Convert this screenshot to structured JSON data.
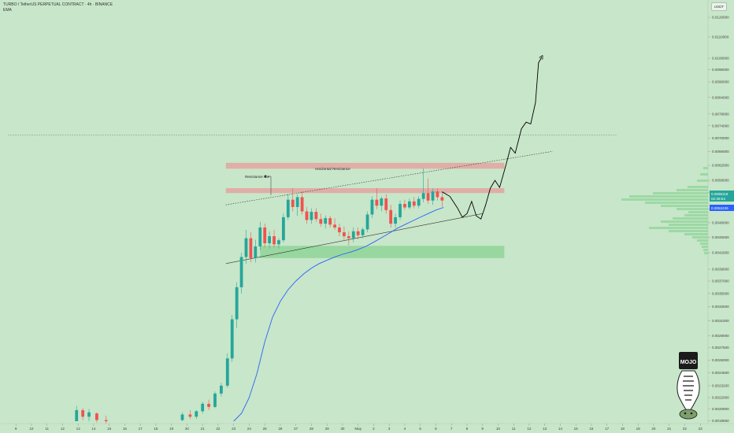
{
  "header": {
    "title": "TURBO / TetherUS PERPETUAL CONTRACT · 4h · BINANCE",
    "indicator": "EMA"
  },
  "currency_label": "USDT",
  "price_tags": {
    "last_price": "0.0055118",
    "countdown": "02:38:54",
    "ema_value": "0.0052426"
  },
  "annotations": {
    "horizontal_resistance": "Horizontal Resistance",
    "resistance_line": "Resistance line"
  },
  "logo_text": "MOJO",
  "colors": {
    "background": "#c8e6c9",
    "up_candle": "#26a69a",
    "down_candle": "#ef5350",
    "ema": "#2962ff",
    "resistance_zone": "#e3a3a0",
    "support_zone": "#8fd498"
  },
  "chart_data": {
    "type": "candlestick",
    "y_ticks": [
      "0.0120000",
      "0.0110000",
      "0.0100000",
      "0.0095000",
      "0.0090000",
      "0.0084000",
      "0.0078000",
      "0.0074000",
      "0.0070000",
      "0.0066000",
      "0.0062000",
      "0.0058000",
      "0.0055000",
      "0.0051000",
      "0.0048000",
      "0.0045000",
      "0.0042000",
      "0.0039000",
      "0.0037000",
      "0.0035000",
      "0.0033000",
      "0.0031000",
      "0.0029000",
      "0.0027500",
      "0.0026000",
      "0.0024600",
      "0.0023200",
      "0.0022000",
      "0.0020900",
      "0.0019850"
    ],
    "x_ticks": [
      "9",
      "10",
      "11",
      "12",
      "13",
      "14",
      "15",
      "16",
      "17",
      "18",
      "19",
      "20",
      "21",
      "22",
      "23",
      "24",
      "25",
      "26",
      "27",
      "28",
      "29",
      "30",
      "May",
      "2",
      "3",
      "4",
      "5",
      "6",
      "7",
      "8",
      "9",
      "10",
      "11",
      "12",
      "13",
      "14",
      "15",
      "16",
      "17",
      "18",
      "19",
      "20",
      "21",
      "22",
      "23"
    ],
    "ylim": [
      0.00198,
      0.0127
    ],
    "candles": [
      {
        "x": 12.9,
        "o": 0.00198,
        "h": 0.00212,
        "l": 0.00198,
        "c": 0.00208
      },
      {
        "x": 13.3,
        "o": 0.00208,
        "h": 0.0021,
        "l": 0.00199,
        "c": 0.00202
      },
      {
        "x": 13.7,
        "o": 0.00202,
        "h": 0.00209,
        "l": 0.00198,
        "c": 0.00206
      },
      {
        "x": 14.2,
        "o": 0.00205,
        "h": 0.00206,
        "l": 0.00197,
        "c": 0.00199
      },
      {
        "x": 14.8,
        "o": 0.00199,
        "h": 0.00203,
        "l": 0.00196,
        "c": 0.00198
      },
      {
        "x": 19.7,
        "o": 0.00199,
        "h": 0.00206,
        "l": 0.00198,
        "c": 0.00204
      },
      {
        "x": 20.2,
        "o": 0.00204,
        "h": 0.00208,
        "l": 0.002,
        "c": 0.00202
      },
      {
        "x": 20.6,
        "o": 0.00202,
        "h": 0.00208,
        "l": 0.002,
        "c": 0.00207
      },
      {
        "x": 21.0,
        "o": 0.00207,
        "h": 0.00216,
        "l": 0.00205,
        "c": 0.00214
      },
      {
        "x": 21.4,
        "o": 0.00214,
        "h": 0.00218,
        "l": 0.00208,
        "c": 0.00211
      },
      {
        "x": 21.8,
        "o": 0.00211,
        "h": 0.00226,
        "l": 0.0021,
        "c": 0.00224
      },
      {
        "x": 22.2,
        "o": 0.00224,
        "h": 0.00235,
        "l": 0.00221,
        "c": 0.00232
      },
      {
        "x": 22.6,
        "o": 0.00232,
        "h": 0.00268,
        "l": 0.0023,
        "c": 0.00262
      },
      {
        "x": 22.9,
        "o": 0.00262,
        "h": 0.00318,
        "l": 0.00258,
        "c": 0.00312
      },
      {
        "x": 23.2,
        "o": 0.00312,
        "h": 0.00368,
        "l": 0.003,
        "c": 0.0036
      },
      {
        "x": 23.5,
        "o": 0.0036,
        "h": 0.0042,
        "l": 0.0035,
        "c": 0.00412
      },
      {
        "x": 23.8,
        "o": 0.00412,
        "h": 0.00465,
        "l": 0.004,
        "c": 0.00448
      },
      {
        "x": 24.1,
        "o": 0.00448,
        "h": 0.0046,
        "l": 0.00402,
        "c": 0.0041
      },
      {
        "x": 24.4,
        "o": 0.0041,
        "h": 0.00445,
        "l": 0.00402,
        "c": 0.00432
      },
      {
        "x": 24.7,
        "o": 0.00432,
        "h": 0.00482,
        "l": 0.00425,
        "c": 0.0047
      },
      {
        "x": 25.0,
        "o": 0.0047,
        "h": 0.00478,
        "l": 0.0043,
        "c": 0.00438
      },
      {
        "x": 25.3,
        "o": 0.00438,
        "h": 0.00462,
        "l": 0.00428,
        "c": 0.00452
      },
      {
        "x": 25.6,
        "o": 0.00452,
        "h": 0.00465,
        "l": 0.0043,
        "c": 0.00436
      },
      {
        "x": 25.9,
        "o": 0.00436,
        "h": 0.00448,
        "l": 0.00428,
        "c": 0.00444
      },
      {
        "x": 26.2,
        "o": 0.00444,
        "h": 0.005,
        "l": 0.0044,
        "c": 0.00492
      },
      {
        "x": 26.5,
        "o": 0.00492,
        "h": 0.00545,
        "l": 0.00486,
        "c": 0.00532
      },
      {
        "x": 26.8,
        "o": 0.00532,
        "h": 0.0056,
        "l": 0.00505,
        "c": 0.00515
      },
      {
        "x": 27.1,
        "o": 0.00515,
        "h": 0.00545,
        "l": 0.00495,
        "c": 0.00538
      },
      {
        "x": 27.4,
        "o": 0.00538,
        "h": 0.00552,
        "l": 0.00498,
        "c": 0.00505
      },
      {
        "x": 27.7,
        "o": 0.00505,
        "h": 0.00515,
        "l": 0.00478,
        "c": 0.00486
      },
      {
        "x": 28.0,
        "o": 0.00486,
        "h": 0.00512,
        "l": 0.00478,
        "c": 0.00504
      },
      {
        "x": 28.3,
        "o": 0.00504,
        "h": 0.00512,
        "l": 0.00482,
        "c": 0.00488
      },
      {
        "x": 28.6,
        "o": 0.00488,
        "h": 0.005,
        "l": 0.00472,
        "c": 0.00478
      },
      {
        "x": 28.9,
        "o": 0.00478,
        "h": 0.00496,
        "l": 0.00468,
        "c": 0.0049
      },
      {
        "x": 29.2,
        "o": 0.0049,
        "h": 0.00495,
        "l": 0.0047,
        "c": 0.00476
      },
      {
        "x": 29.5,
        "o": 0.00476,
        "h": 0.0049,
        "l": 0.00465,
        "c": 0.0047
      },
      {
        "x": 29.8,
        "o": 0.0047,
        "h": 0.00478,
        "l": 0.00452,
        "c": 0.0046
      },
      {
        "x": 30.1,
        "o": 0.0046,
        "h": 0.00472,
        "l": 0.00445,
        "c": 0.00452
      },
      {
        "x": 30.4,
        "o": 0.00452,
        "h": 0.00462,
        "l": 0.00434,
        "c": 0.00448
      },
      {
        "x": 30.7,
        "o": 0.00448,
        "h": 0.0047,
        "l": 0.0044,
        "c": 0.00462
      },
      {
        "x": 31.0,
        "o": 0.00462,
        "h": 0.0047,
        "l": 0.00446,
        "c": 0.00454
      },
      {
        "x": 31.3,
        "o": 0.00454,
        "h": 0.0047,
        "l": 0.00448,
        "c": 0.00466
      },
      {
        "x": 31.6,
        "o": 0.00466,
        "h": 0.00505,
        "l": 0.0046,
        "c": 0.00498
      },
      {
        "x": 31.9,
        "o": 0.00498,
        "h": 0.0054,
        "l": 0.0049,
        "c": 0.00532
      },
      {
        "x": 32.2,
        "o": 0.00532,
        "h": 0.0056,
        "l": 0.0051,
        "c": 0.00518
      },
      {
        "x": 32.5,
        "o": 0.00518,
        "h": 0.0054,
        "l": 0.00505,
        "c": 0.00535
      },
      {
        "x": 32.8,
        "o": 0.00535,
        "h": 0.00545,
        "l": 0.005,
        "c": 0.00508
      },
      {
        "x": 33.1,
        "o": 0.00508,
        "h": 0.0052,
        "l": 0.0047,
        "c": 0.00478
      },
      {
        "x": 33.4,
        "o": 0.00478,
        "h": 0.005,
        "l": 0.0047,
        "c": 0.00492
      },
      {
        "x": 33.7,
        "o": 0.00492,
        "h": 0.0053,
        "l": 0.00486,
        "c": 0.00522
      },
      {
        "x": 34.0,
        "o": 0.00522,
        "h": 0.00532,
        "l": 0.00508,
        "c": 0.00514
      },
      {
        "x": 34.3,
        "o": 0.00514,
        "h": 0.00535,
        "l": 0.0051,
        "c": 0.00528
      },
      {
        "x": 34.6,
        "o": 0.00528,
        "h": 0.00538,
        "l": 0.00512,
        "c": 0.00518
      },
      {
        "x": 34.9,
        "o": 0.00518,
        "h": 0.0054,
        "l": 0.00512,
        "c": 0.00534
      },
      {
        "x": 35.2,
        "o": 0.00534,
        "h": 0.00612,
        "l": 0.00526,
        "c": 0.00548
      },
      {
        "x": 35.5,
        "o": 0.00548,
        "h": 0.00585,
        "l": 0.00522,
        "c": 0.0053
      },
      {
        "x": 35.8,
        "o": 0.0053,
        "h": 0.0056,
        "l": 0.0052,
        "c": 0.00552
      },
      {
        "x": 36.1,
        "o": 0.00552,
        "h": 0.0056,
        "l": 0.0053,
        "c": 0.00538
      },
      {
        "x": 36.4,
        "o": 0.00538,
        "h": 0.00552,
        "l": 0.00515,
        "c": 0.0053
      }
    ],
    "ema": [
      [
        23.0,
        0.00198
      ],
      [
        23.5,
        0.00205
      ],
      [
        24.0,
        0.0022
      ],
      [
        24.5,
        0.00245
      ],
      [
        25.0,
        0.00282
      ],
      [
        25.5,
        0.00315
      ],
      [
        26.0,
        0.00338
      ],
      [
        26.5,
        0.00356
      ],
      [
        27.0,
        0.0037
      ],
      [
        27.5,
        0.00382
      ],
      [
        28.0,
        0.00392
      ],
      [
        28.5,
        0.004
      ],
      [
        29.0,
        0.00406
      ],
      [
        29.5,
        0.00412
      ],
      [
        30.0,
        0.00417
      ],
      [
        30.5,
        0.00421
      ],
      [
        31.0,
        0.00426
      ],
      [
        31.5,
        0.00432
      ],
      [
        32.0,
        0.0044
      ],
      [
        32.5,
        0.00449
      ],
      [
        33.0,
        0.00458
      ],
      [
        33.5,
        0.00468
      ],
      [
        34.0,
        0.00476
      ],
      [
        34.5,
        0.00484
      ],
      [
        35.0,
        0.00492
      ],
      [
        35.5,
        0.005
      ],
      [
        36.0,
        0.00508
      ],
      [
        36.5,
        0.00514
      ]
    ],
    "zones": [
      {
        "name": "horizontal-resistance-upper",
        "x0": 22.5,
        "x1": 40.4,
        "y0": 0.00611,
        "y1": 0.00627
      },
      {
        "name": "horizontal-resistance-lower",
        "x0": 22.5,
        "x1": 40.4,
        "y0": 0.00548,
        "y1": 0.0056
      },
      {
        "name": "support-zone",
        "x0": 24.7,
        "x1": 40.4,
        "y0": 0.0041,
        "y1": 0.00433
      }
    ],
    "lines": [
      {
        "name": "resistance-trendline",
        "style": "dotted",
        "points": [
          [
            22.5,
            0.0052
          ],
          [
            43.5,
            0.0066
          ]
        ]
      },
      {
        "name": "support-trendline",
        "style": "solid",
        "points": [
          [
            22.5,
            0.004
          ],
          [
            39.0,
            0.005
          ]
        ]
      },
      {
        "name": "top-dotted-level",
        "style": "dotted",
        "points": [
          [
            8.5,
            0.0071
          ],
          [
            47.6,
            0.0071
          ]
        ]
      }
    ],
    "projection": [
      [
        36.4,
        0.00551
      ],
      [
        36.9,
        0.0054
      ],
      [
        37.4,
        0.00512
      ],
      [
        37.7,
        0.00492
      ],
      [
        38.0,
        0.005
      ],
      [
        38.3,
        0.00528
      ],
      [
        38.6,
        0.00495
      ],
      [
        38.9,
        0.00488
      ],
      [
        39.2,
        0.0052
      ],
      [
        39.5,
        0.0056
      ],
      [
        39.8,
        0.0058
      ],
      [
        40.1,
        0.00562
      ],
      [
        40.5,
        0.0062
      ],
      [
        40.8,
        0.00672
      ],
      [
        41.1,
        0.00655
      ],
      [
        41.5,
        0.0073
      ],
      [
        41.8,
        0.00752
      ],
      [
        42.1,
        0.00746
      ],
      [
        42.4,
        0.0082
      ],
      [
        42.6,
        0.0098
      ],
      [
        42.8,
        0.01005
      ]
    ],
    "grid": false,
    "legend": "none"
  }
}
